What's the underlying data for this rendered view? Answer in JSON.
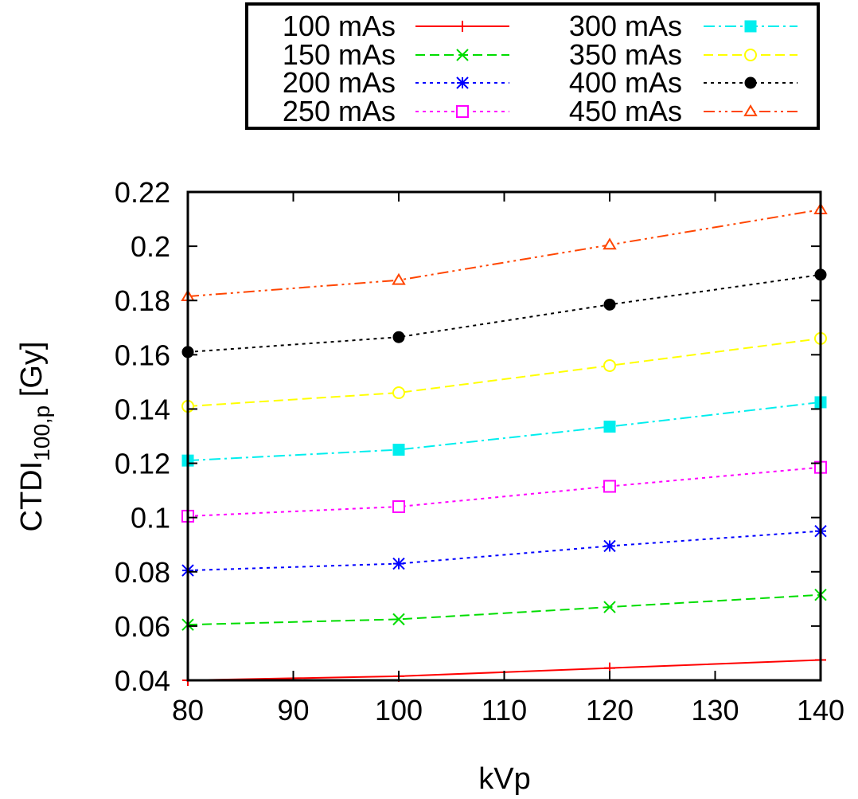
{
  "chart_data": {
    "type": "line",
    "xlabel": "kVp",
    "ylabel_main": "CTDI",
    "ylabel_sub": "100,p",
    "ylabel_unit": " [Gy]",
    "xlim": [
      80,
      140
    ],
    "ylim": [
      0.04,
      0.22
    ],
    "xticks": [
      80,
      90,
      100,
      110,
      120,
      130,
      140
    ],
    "yticks": [
      0.04,
      0.06,
      0.08,
      0.1,
      0.12,
      0.14,
      0.16,
      0.18,
      0.2,
      0.22
    ],
    "ytick_labels": [
      "0.04",
      "0.06",
      "0.08",
      "0.1",
      "0.12",
      "0.14",
      "0.16",
      "0.18",
      "0.2",
      "0.22"
    ],
    "grid": false,
    "legend_position": "top-center, outside plot",
    "x": [
      80,
      100,
      120,
      140
    ],
    "series": [
      {
        "name": "100 mAs",
        "color": "#ff0000",
        "marker": "plus",
        "dash": "solid",
        "values": [
          0.04,
          0.0415,
          0.0445,
          0.0475
        ]
      },
      {
        "name": "150 mAs",
        "color": "#00dd00",
        "marker": "cross",
        "dash": "dashed",
        "values": [
          0.0605,
          0.0625,
          0.067,
          0.0715
        ]
      },
      {
        "name": "200 mAs",
        "color": "#0000ff",
        "marker": "star",
        "dash": "dotted",
        "values": [
          0.0805,
          0.083,
          0.0895,
          0.095
        ]
      },
      {
        "name": "250 mAs",
        "color": "#ff00ff",
        "marker": "square-open",
        "dash": "dotted",
        "values": [
          0.1005,
          0.104,
          0.1115,
          0.1185
        ]
      },
      {
        "name": "300 mAs",
        "color": "#00eeee",
        "marker": "square-filled",
        "dash": "dashdot",
        "values": [
          0.121,
          0.125,
          0.1335,
          0.1425
        ]
      },
      {
        "name": "350 mAs",
        "color": "#ffff00",
        "marker": "circle-open",
        "dash": "dashed",
        "values": [
          0.141,
          0.146,
          0.156,
          0.166
        ]
      },
      {
        "name": "400 mAs",
        "color": "#000000",
        "marker": "circle-filled",
        "dash": "dotted",
        "values": [
          0.161,
          0.1665,
          0.1785,
          0.1895
        ]
      },
      {
        "name": "450 mAs",
        "color": "#ff4500",
        "marker": "triangle-open",
        "dash": "dashdotdot",
        "values": [
          0.1815,
          0.1875,
          0.2005,
          0.2135
        ]
      }
    ]
  }
}
